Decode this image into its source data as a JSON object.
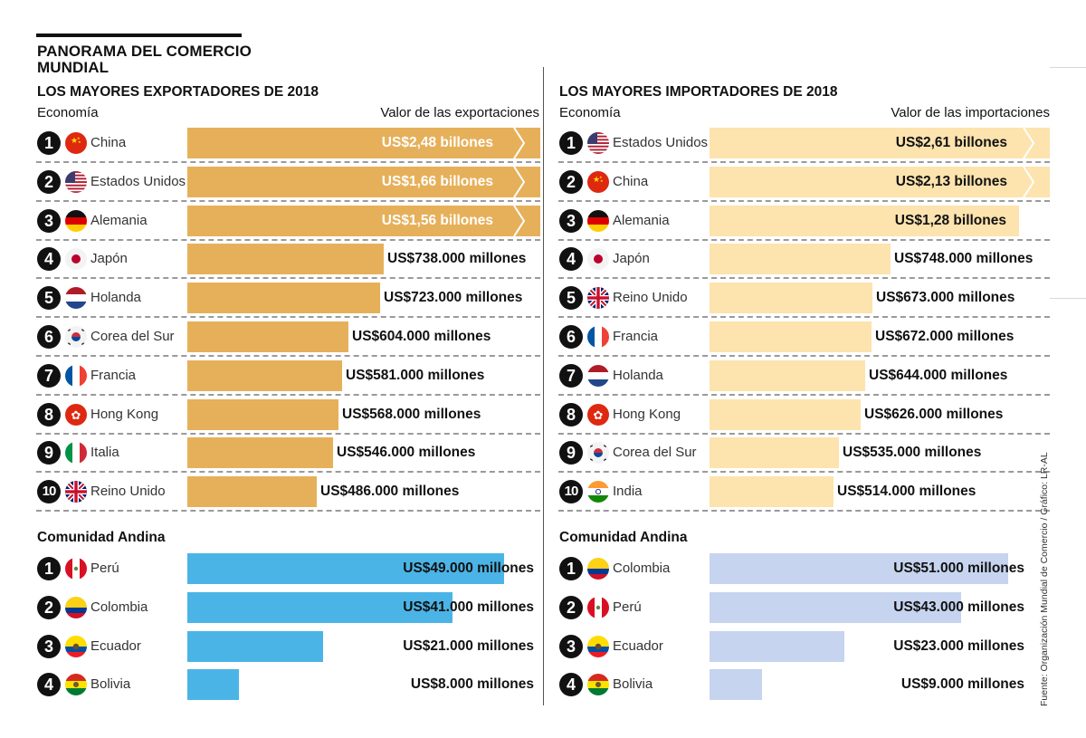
{
  "title": "PANORAMA DEL COMERCIO MUNDIAL",
  "source": "Fuente: Organización Mundial de Comercio / Gráfico: LR-AL",
  "colors": {
    "export_bar": "#e6b05a",
    "import_bar": "#fde3ae",
    "andean_export_bar": "#4bb4e6",
    "andean_import_bar": "#c6d4ef"
  },
  "exports": {
    "title": "LOS MAYORES EXPORTADORES DE 2018",
    "col_economy": "Economía",
    "col_value": "Valor de las exportaciones"
  },
  "imports": {
    "title": "LOS MAYORES IMPORTADORES DE 2018",
    "col_economy": "Economía",
    "col_value": "Valor de las importaciones"
  },
  "andean_title": "Comunidad Andina",
  "chart_data": [
    {
      "type": "bar",
      "orientation": "horizontal",
      "title": "LOS MAYORES EXPORTADORES DE 2018",
      "xlabel": "Valor de las exportaciones",
      "unit": "US$ millones",
      "axis_break_above": 1000000,
      "rows": [
        {
          "rank": "1",
          "country": "China",
          "flag": "cn",
          "value": 2480000,
          "label": "US$2,48 billones",
          "broken": true
        },
        {
          "rank": "2",
          "country": "Estados Unidos",
          "flag": "us",
          "value": 1660000,
          "label": "US$1,66 billones",
          "broken": true
        },
        {
          "rank": "3",
          "country": "Alemania",
          "flag": "de",
          "value": 1560000,
          "label": "US$1,56 billones",
          "broken": true
        },
        {
          "rank": "4",
          "country": "Japón",
          "flag": "jp",
          "value": 738000,
          "label": "US$738.000 millones"
        },
        {
          "rank": "5",
          "country": "Holanda",
          "flag": "nl",
          "value": 723000,
          "label": "US$723.000 millones"
        },
        {
          "rank": "6",
          "country": "Corea del Sur",
          "flag": "kr",
          "value": 604000,
          "label": "US$604.000 millones"
        },
        {
          "rank": "7",
          "country": "Francia",
          "flag": "fr",
          "value": 581000,
          "label": "US$581.000 millones"
        },
        {
          "rank": "8",
          "country": "Hong Kong",
          "flag": "hk",
          "value": 568000,
          "label": "US$568.000 millones"
        },
        {
          "rank": "9",
          "country": "Italia",
          "flag": "it",
          "value": 546000,
          "label": "US$546.000 millones"
        },
        {
          "rank": "10",
          "country": "Reino Unido",
          "flag": "gb",
          "value": 486000,
          "label": "US$486.000 millones"
        }
      ]
    },
    {
      "type": "bar",
      "orientation": "horizontal",
      "title": "LOS MAYORES IMPORTADORES DE 2018",
      "xlabel": "Valor de las importaciones",
      "unit": "US$ millones",
      "axis_break_above": 1500000,
      "rows": [
        {
          "rank": "1",
          "country": "Estados Unidos",
          "flag": "us",
          "value": 2610000,
          "label": "US$2,61 billones",
          "broken": true
        },
        {
          "rank": "2",
          "country": "China",
          "flag": "cn",
          "value": 2130000,
          "label": "US$2,13 billones",
          "broken": true
        },
        {
          "rank": "3",
          "country": "Alemania",
          "flag": "de",
          "value": 1280000,
          "label": "US$1,28 billones"
        },
        {
          "rank": "4",
          "country": "Japón",
          "flag": "jp",
          "value": 748000,
          "label": "US$748.000 millones"
        },
        {
          "rank": "5",
          "country": "Reino Unido",
          "flag": "gb",
          "value": 673000,
          "label": "US$673.000 millones"
        },
        {
          "rank": "6",
          "country": "Francia",
          "flag": "fr",
          "value": 672000,
          "label": "US$672.000 millones"
        },
        {
          "rank": "7",
          "country": "Holanda",
          "flag": "nl",
          "value": 644000,
          "label": "US$644.000 millones"
        },
        {
          "rank": "8",
          "country": "Hong Kong",
          "flag": "hk",
          "value": 626000,
          "label": "US$626.000 millones"
        },
        {
          "rank": "9",
          "country": "Corea del Sur",
          "flag": "kr",
          "value": 535000,
          "label": "US$535.000 millones"
        },
        {
          "rank": "10",
          "country": "India",
          "flag": "in",
          "value": 514000,
          "label": "US$514.000 millones"
        }
      ]
    },
    {
      "type": "bar",
      "orientation": "horizontal",
      "title": "Comunidad Andina",
      "series_name": "Exportaciones",
      "unit": "US$ millones",
      "rows": [
        {
          "rank": "1",
          "country": "Perú",
          "flag": "pe",
          "value": 49000,
          "label": "US$49.000 millones"
        },
        {
          "rank": "2",
          "country": "Colombia",
          "flag": "co",
          "value": 41000,
          "label": "US$41.000 millones"
        },
        {
          "rank": "3",
          "country": "Ecuador",
          "flag": "ec",
          "value": 21000,
          "label": "US$21.000 millones"
        },
        {
          "rank": "4",
          "country": "Bolivia",
          "flag": "bo",
          "value": 8000,
          "label": "US$8.000 millones"
        }
      ]
    },
    {
      "type": "bar",
      "orientation": "horizontal",
      "title": "Comunidad Andina",
      "series_name": "Importaciones",
      "unit": "US$ millones",
      "rows": [
        {
          "rank": "1",
          "country": "Colombia",
          "flag": "co",
          "value": 51000,
          "label": "US$51.000 millones"
        },
        {
          "rank": "2",
          "country": "Perú",
          "flag": "pe",
          "value": 43000,
          "label": "US$43.000 millones"
        },
        {
          "rank": "3",
          "country": "Ecuador",
          "flag": "ec",
          "value": 23000,
          "label": "US$23.000 millones"
        },
        {
          "rank": "4",
          "country": "Bolivia",
          "flag": "bo",
          "value": 9000,
          "label": "US$9.000 millones"
        }
      ]
    }
  ]
}
